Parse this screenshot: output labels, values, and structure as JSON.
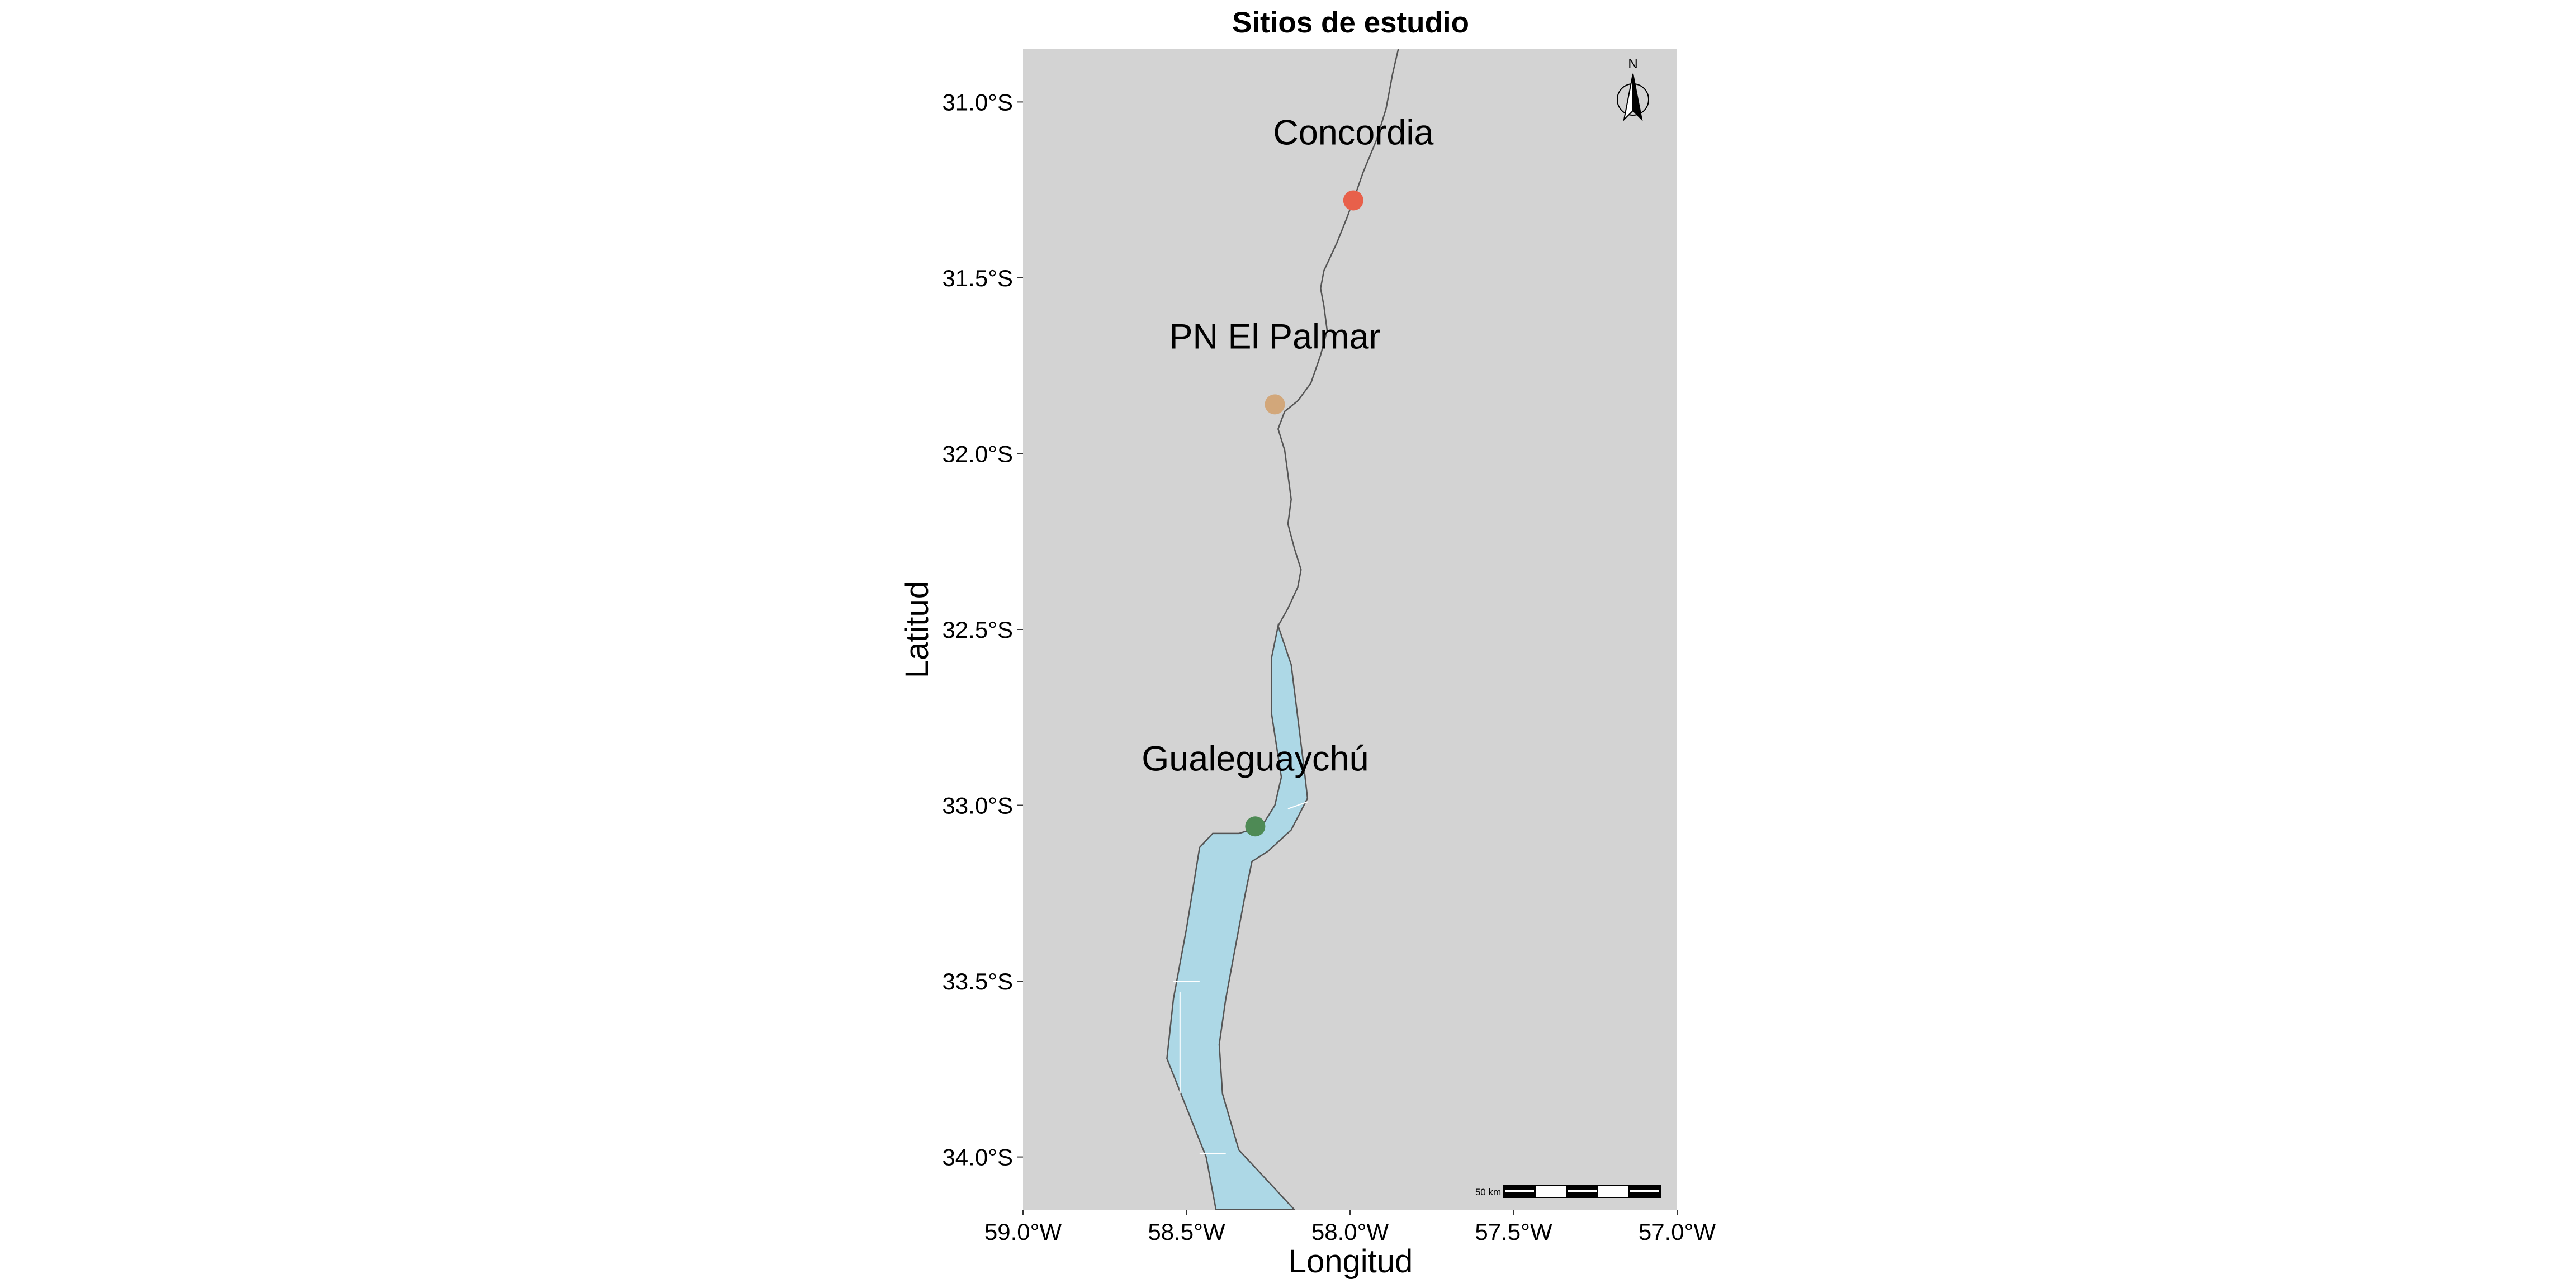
{
  "title": "Sitios de estudio",
  "xlabel": "Longitud",
  "ylabel": "Latitud",
  "xlim": [
    -59.0,
    -57.0
  ],
  "ylim": [
    -34.15,
    -30.85
  ],
  "x_ticks": [
    {
      "value": -59.0,
      "label": "59.0°W"
    },
    {
      "value": -58.5,
      "label": "58.5°W"
    },
    {
      "value": -58.0,
      "label": "58.0°W"
    },
    {
      "value": -57.5,
      "label": "57.5°W"
    },
    {
      "value": -57.0,
      "label": "57.0°W"
    }
  ],
  "y_ticks": [
    {
      "value": -31.0,
      "label": "31.0°S"
    },
    {
      "value": -31.5,
      "label": "31.5°S"
    },
    {
      "value": -32.0,
      "label": "32.0°S"
    },
    {
      "value": -32.5,
      "label": "32.5°S"
    },
    {
      "value": -33.0,
      "label": "33.0°S"
    },
    {
      "value": -33.5,
      "label": "33.5°S"
    },
    {
      "value": -34.0,
      "label": "34.0°S"
    }
  ],
  "sites": [
    {
      "name": "Concordia",
      "lon": -57.99,
      "lat": -31.28,
      "color": "#E8604A"
    },
    {
      "name": "PN El Palmar",
      "lon": -58.23,
      "lat": -31.86,
      "color": "#D2A77A"
    },
    {
      "name": "Gualeguaychú",
      "lon": -58.29,
      "lat": -33.06,
      "color": "#4E8A55"
    }
  ],
  "colors": {
    "panel_background": "#D3D3D3",
    "water": "#ADD8E6",
    "river_outline": "#555555",
    "water_internal_lines": "#FFFFFF"
  },
  "north_arrow": {
    "label": "N"
  },
  "scale_bar": {
    "label": "50 km"
  },
  "river_line": [
    [
      -57.85,
      -30.84
    ],
    [
      -57.87,
      -30.92
    ],
    [
      -57.89,
      -31.02
    ],
    [
      -57.92,
      -31.11
    ],
    [
      -57.96,
      -31.2
    ],
    [
      -57.99,
      -31.28
    ],
    [
      -58.01,
      -31.33
    ],
    [
      -58.04,
      -31.4
    ],
    [
      -58.08,
      -31.48
    ],
    [
      -58.09,
      -31.53
    ],
    [
      -58.08,
      -31.58
    ],
    [
      -58.07,
      -31.65
    ],
    [
      -58.09,
      -31.72
    ],
    [
      -58.12,
      -31.8
    ],
    [
      -58.16,
      -31.85
    ],
    [
      -58.2,
      -31.88
    ],
    [
      -58.22,
      -31.93
    ],
    [
      -58.2,
      -31.99
    ],
    [
      -58.19,
      -32.06
    ],
    [
      -58.18,
      -32.13
    ],
    [
      -58.19,
      -32.2
    ],
    [
      -58.17,
      -32.27
    ],
    [
      -58.15,
      -32.33
    ],
    [
      -58.16,
      -32.38
    ],
    [
      -58.19,
      -32.44
    ],
    [
      -58.22,
      -32.49
    ]
  ],
  "water_outline": [
    [
      -58.22,
      -32.49
    ],
    [
      -58.18,
      -32.6
    ],
    [
      -58.16,
      -32.75
    ],
    [
      -58.14,
      -32.9
    ],
    [
      -58.13,
      -32.98
    ],
    [
      -58.18,
      -33.07
    ],
    [
      -58.25,
      -33.13
    ],
    [
      -58.3,
      -33.16
    ],
    [
      -58.32,
      -33.25
    ],
    [
      -58.35,
      -33.4
    ],
    [
      -58.38,
      -33.55
    ],
    [
      -58.4,
      -33.68
    ],
    [
      -58.39,
      -33.82
    ],
    [
      -58.34,
      -33.98
    ],
    [
      -58.17,
      -34.15
    ],
    [
      -58.41,
      -34.15
    ],
    [
      -58.44,
      -34.0
    ],
    [
      -58.5,
      -33.86
    ],
    [
      -58.56,
      -33.72
    ],
    [
      -58.54,
      -33.55
    ],
    [
      -58.5,
      -33.35
    ],
    [
      -58.46,
      -33.12
    ],
    [
      -58.42,
      -33.08
    ],
    [
      -58.34,
      -33.08
    ],
    [
      -58.27,
      -33.06
    ],
    [
      -58.23,
      -33.0
    ],
    [
      -58.21,
      -32.92
    ],
    [
      -58.24,
      -32.74
    ],
    [
      -58.24,
      -32.58
    ]
  ],
  "water_internal_lines": [
    [
      [
        -58.54,
        -33.5
      ],
      [
        -58.46,
        -33.5
      ]
    ],
    [
      [
        -58.52,
        -33.53
      ],
      [
        -58.52,
        -33.82
      ]
    ],
    [
      [
        -58.46,
        -33.99
      ],
      [
        -58.38,
        -33.99
      ]
    ],
    [
      [
        -58.19,
        -33.01
      ],
      [
        -58.13,
        -32.99
      ]
    ]
  ]
}
